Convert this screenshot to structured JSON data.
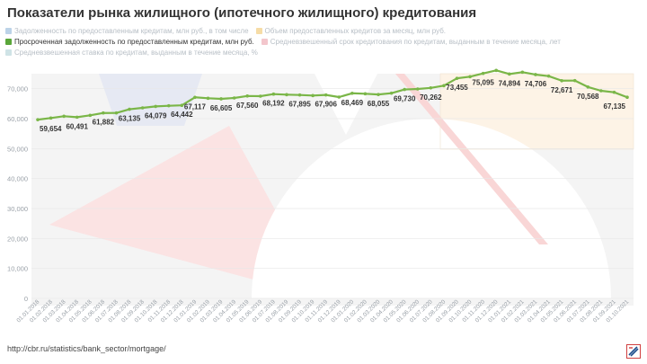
{
  "title": "Показатели рынка жилищного (ипотечного жилищного) кредитования",
  "source": "http://cbr.ru/statistics/bank_sector/mortgage/",
  "colors": {
    "line": "#7ab648",
    "grid": "#e8e8e8",
    "legend_inactive": [
      "#bcd3e8",
      "#f6dca6",
      "#f3c6cc",
      "#cfe3e6"
    ]
  },
  "legend": [
    {
      "label": "Задолженность по предоставленным кредитам, млн руб., в том числе",
      "color": "#bcd3e8",
      "active": false
    },
    {
      "label": "Объем предоставленных кредитов за месяц, млн руб.",
      "color": "#f6dca6",
      "active": false
    },
    {
      "label": "Просроченная задолженность по предоставленным кредитам, млн руб.",
      "color": "#5aa63a",
      "active": true
    },
    {
      "label": "Средневзвешенный срок кредитования по кредитам, выданным в течение месяца, лет",
      "color": "#f3c6cc",
      "active": false
    },
    {
      "label": "Средневзвешенная ставка по кредитам, выданным в течение месяца, %",
      "color": "#cfe3e6",
      "active": false
    }
  ],
  "chart_data": {
    "type": "line",
    "title": "Показатели рынка жилищного (ипотечного жилищного) кредитования",
    "ylim": [
      0,
      75000
    ],
    "yticks": [
      0,
      10000,
      20000,
      30000,
      40000,
      50000,
      60000,
      70000
    ],
    "ytick_labels": [
      "0",
      "10,000",
      "20,000",
      "30,000",
      "40,000",
      "50,000",
      "60,000",
      "70,000"
    ],
    "grid": true,
    "x": [
      "01.01.2018",
      "01.02.2018",
      "01.03.2018",
      "01.04.2018",
      "01.05.2018",
      "01.06.2018",
      "01.07.2018",
      "01.08.2018",
      "01.09.2018",
      "01.10.2018",
      "01.11.2018",
      "01.12.2018",
      "01.01.2019",
      "01.02.2019",
      "01.03.2019",
      "01.04.2019",
      "01.05.2019",
      "01.06.2019",
      "01.07.2019",
      "01.08.2019",
      "01.09.2019",
      "01.10.2019",
      "01.11.2019",
      "01.12.2019",
      "01.01.2020",
      "01.02.2020",
      "01.03.2020",
      "01.04.2020",
      "01.05.2020",
      "01.06.2020",
      "01.07.2020",
      "01.08.2020",
      "01.09.2020",
      "01.10.2020",
      "01.11.2020",
      "01.12.2020",
      "01.01.2021",
      "01.02.2021",
      "01.03.2021",
      "01.04.2021",
      "01.05.2021",
      "01.06.2021",
      "01.07.2021",
      "01.08.2021",
      "01.09.2021",
      "01.10.2021"
    ],
    "series": [
      {
        "name": "Просроченная задолженность по предоставленным кредитам, млн руб.",
        "values": [
          59654,
          60200,
          60800,
          60491,
          61100,
          61882,
          61900,
          63135,
          63600,
          64079,
          64300,
          64442,
          67117,
          66800,
          66605,
          66900,
          67560,
          67500,
          68192,
          68000,
          67895,
          67700,
          67906,
          67200,
          68469,
          68300,
          68055,
          68500,
          69730,
          69900,
          70262,
          71000,
          73455,
          74000,
          75095,
          76100,
          74894,
          75500,
          74706,
          74200,
          72671,
          72700,
          70568,
          69300,
          68800,
          67135
        ],
        "labels": [
          "59,654",
          "",
          "",
          "60,491",
          "",
          "61,882",
          "",
          "63,135",
          "",
          "64,079",
          "",
          "64,442",
          "67,117",
          "",
          "66,605",
          "",
          "67,560",
          "",
          "68,192",
          "",
          "67,895",
          "",
          "67,906",
          "",
          "68,469",
          "",
          "68,055",
          "",
          "69,730",
          "",
          "70,262",
          "",
          "73,455",
          "",
          "75,095",
          "",
          "74,894",
          "",
          "74,706",
          "",
          "72,671",
          "",
          "70,568",
          "",
          "",
          "67,135"
        ]
      }
    ]
  }
}
